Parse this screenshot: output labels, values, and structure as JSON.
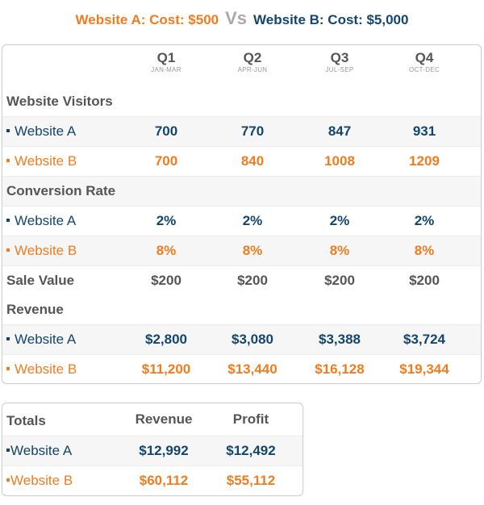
{
  "header": {
    "a": "Website A: Cost: $500",
    "vs": "Vs",
    "b": "Website B: Cost: $5,000"
  },
  "colors": {
    "website_a": "#13456e",
    "website_b": "#f07c1f",
    "section": "#555555"
  },
  "columns": [
    {
      "q": "Q1",
      "months": "JAN-MAR"
    },
    {
      "q": "Q2",
      "months": "APR-JUN"
    },
    {
      "q": "Q3",
      "months": "JUL-SEP"
    },
    {
      "q": "Q4",
      "months": "OCT-DEC"
    }
  ],
  "visitors": {
    "label": "Website Visitors",
    "a": {
      "label": "Website A",
      "values": [
        "700",
        "770",
        "847",
        "931"
      ]
    },
    "b": {
      "label": "Website B",
      "values": [
        "700",
        "840",
        "1008",
        "1209"
      ]
    }
  },
  "conversion": {
    "label": "Conversion Rate",
    "a": {
      "label": "Website A",
      "values": [
        "2%",
        "2%",
        "2%",
        "2%"
      ]
    },
    "b": {
      "label": "Website B",
      "values": [
        "8%",
        "8%",
        "8%",
        "8%"
      ]
    }
  },
  "sale_value": {
    "label": "Sale Value",
    "values": [
      "$200",
      "$200",
      "$200",
      "$200"
    ]
  },
  "revenue": {
    "label": "Revenue",
    "a": {
      "label": "Website A",
      "values": [
        "$2,800",
        "$3,080",
        "$3,388",
        "$3,724"
      ]
    },
    "b": {
      "label": "Website B",
      "values": [
        "$11,200",
        "$13,440",
        "$16,128",
        "$19,344"
      ]
    }
  },
  "totals": {
    "label": "Totals",
    "headers": [
      "Revenue",
      "Profit"
    ],
    "a": {
      "label": "Website A",
      "revenue": "$12,992",
      "profit": "$12,492"
    },
    "b": {
      "label": "Website B",
      "revenue": "$60,112",
      "profit": "$55,112"
    }
  }
}
